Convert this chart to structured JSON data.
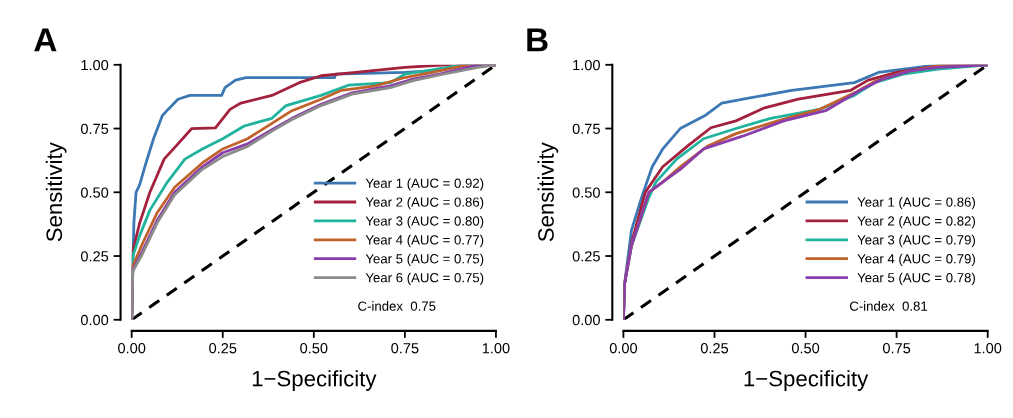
{
  "chart_data": [
    {
      "type": "line",
      "title": "A",
      "xlabel": "1−Specificity",
      "ylabel": "Sensitivity",
      "xlim": [
        0,
        1
      ],
      "ylim": [
        0,
        1
      ],
      "xticks": [
        {
          "value": 0,
          "label": "0.00"
        },
        {
          "value": 0.25,
          "label": "0.25"
        },
        {
          "value": 0.5,
          "label": "0.50"
        },
        {
          "value": 0.75,
          "label": "0.75"
        },
        {
          "value": 1,
          "label": "1.00"
        }
      ],
      "yticks": [
        {
          "value": 0,
          "label": "0.00"
        },
        {
          "value": 0.25,
          "label": "0.25"
        },
        {
          "value": 0.5,
          "label": "0.50"
        },
        {
          "value": 0.75,
          "label": "0.75"
        },
        {
          "value": 1,
          "label": "1.00"
        }
      ],
      "legend": "bottom right",
      "grid": false,
      "annotations": [
        "C-index  0.75"
      ],
      "series": [
        {
          "name": "Year 1 (AUC = 0.92)",
          "color": "#3b78b4",
          "x": [
            0,
            0.006,
            0.012,
            0.022,
            0.036,
            0.06,
            0.084,
            0.1,
            0.127,
            0.16,
            0.247,
            0.256,
            0.285,
            0.314,
            0.557,
            0.56,
            0.75,
            0.825,
            0.91,
            1
          ],
          "values": [
            0,
            0.38,
            0.5,
            0.53,
            0.6,
            0.71,
            0.8,
            0.825,
            0.865,
            0.88,
            0.88,
            0.91,
            0.94,
            0.95,
            0.95,
            0.963,
            0.97,
            0.976,
            1,
            1
          ]
        },
        {
          "name": "Year 2 (AUC = 0.86)",
          "color": "#a3213d",
          "x": [
            0,
            0.003,
            0.022,
            0.05,
            0.089,
            0.127,
            0.165,
            0.23,
            0.27,
            0.3,
            0.385,
            0.46,
            0.52,
            0.615,
            0.75,
            0.863,
            1
          ],
          "values": [
            0,
            0.27,
            0.38,
            0.5,
            0.63,
            0.69,
            0.75,
            0.753,
            0.825,
            0.85,
            0.88,
            0.93,
            0.957,
            0.97,
            0.99,
            1,
            1
          ]
        },
        {
          "name": "Year 3 (AUC = 0.80)",
          "color": "#21b39d",
          "x": [
            0,
            0.003,
            0.022,
            0.05,
            0.098,
            0.146,
            0.194,
            0.25,
            0.309,
            0.385,
            0.424,
            0.52,
            0.595,
            0.71,
            0.75,
            0.825,
            0.91,
            1
          ],
          "values": [
            0,
            0.25,
            0.33,
            0.43,
            0.54,
            0.63,
            0.67,
            0.71,
            0.76,
            0.79,
            0.84,
            0.88,
            0.92,
            0.93,
            0.963,
            0.98,
            1,
            1
          ]
        },
        {
          "name": "Year 4 (AUC = 0.77)",
          "color": "#c0632b",
          "x": [
            0,
            0.003,
            0.03,
            0.07,
            0.118,
            0.194,
            0.25,
            0.318,
            0.385,
            0.44,
            0.52,
            0.576,
            0.67,
            0.75,
            0.825,
            0.91,
            1
          ],
          "values": [
            0,
            0.21,
            0.3,
            0.42,
            0.52,
            0.615,
            0.67,
            0.71,
            0.77,
            0.82,
            0.865,
            0.9,
            0.917,
            0.95,
            0.97,
            0.996,
            1
          ]
        },
        {
          "name": "Year 5 (AUC = 0.75)",
          "color": "#8a3dab",
          "x": [
            0,
            0.003,
            0.03,
            0.07,
            0.118,
            0.194,
            0.25,
            0.318,
            0.385,
            0.44,
            0.52,
            0.605,
            0.71,
            0.77,
            0.845,
            0.94,
            1
          ],
          "values": [
            0,
            0.195,
            0.27,
            0.39,
            0.5,
            0.6,
            0.655,
            0.69,
            0.745,
            0.79,
            0.845,
            0.89,
            0.917,
            0.943,
            0.963,
            0.996,
            1
          ]
        },
        {
          "name": "Year 6 (AUC = 0.75)",
          "color": "#8c8c8c",
          "x": [
            0,
            0.003,
            0.03,
            0.07,
            0.118,
            0.194,
            0.25,
            0.318,
            0.385,
            0.44,
            0.52,
            0.605,
            0.71,
            0.77,
            0.845,
            0.95,
            1
          ],
          "values": [
            0,
            0.19,
            0.26,
            0.38,
            0.49,
            0.59,
            0.64,
            0.68,
            0.74,
            0.785,
            0.84,
            0.885,
            0.91,
            0.937,
            0.96,
            0.99,
            1
          ]
        },
        {
          "color": "#000000",
          "line_style": "dashed",
          "x": [
            0,
            1
          ],
          "values": [
            0,
            1
          ]
        }
      ]
    },
    {
      "type": "line",
      "title": "B",
      "xlabel": "1−Specificity",
      "ylabel": "Sensitivity",
      "xlim": [
        0,
        1
      ],
      "ylim": [
        0,
        1
      ],
      "xticks": [
        {
          "value": 0,
          "label": "0.00"
        },
        {
          "value": 0.25,
          "label": "0.25"
        },
        {
          "value": 0.5,
          "label": "0.50"
        },
        {
          "value": 0.75,
          "label": "0.75"
        },
        {
          "value": 1,
          "label": "1.00"
        }
      ],
      "yticks": [
        {
          "value": 0,
          "label": "0.00"
        },
        {
          "value": 0.25,
          "label": "0.25"
        },
        {
          "value": 0.5,
          "label": "0.50"
        },
        {
          "value": 0.75,
          "label": "0.75"
        },
        {
          "value": 1,
          "label": "1.00"
        }
      ],
      "legend": "bottom right",
      "grid": false,
      "annotations": [
        "C-index  0.81"
      ],
      "series": [
        {
          "name": "Year 1 (AUC = 0.86)",
          "color": "#3b78b4",
          "x": [
            0,
            0.003,
            0.022,
            0.05,
            0.079,
            0.108,
            0.156,
            0.223,
            0.27,
            0.347,
            0.462,
            0.634,
            0.7,
            0.863,
            1
          ],
          "values": [
            0,
            0.14,
            0.35,
            0.48,
            0.6,
            0.67,
            0.75,
            0.8,
            0.85,
            0.87,
            0.9,
            0.93,
            0.97,
            1,
            1
          ]
        },
        {
          "name": "Year 2 (AUC = 0.82)",
          "color": "#a3213d",
          "x": [
            0,
            0.003,
            0.022,
            0.06,
            0.108,
            0.175,
            0.24,
            0.309,
            0.385,
            0.48,
            0.624,
            0.672,
            0.75,
            0.863,
            1
          ],
          "values": [
            0,
            0.14,
            0.3,
            0.5,
            0.6,
            0.68,
            0.753,
            0.78,
            0.83,
            0.865,
            0.9,
            0.94,
            0.97,
            0.996,
            1
          ]
        },
        {
          "name": "Year 3 (AUC = 0.79)",
          "color": "#21b39d",
          "x": [
            0,
            0.003,
            0.022,
            0.07,
            0.089,
            0.146,
            0.22,
            0.309,
            0.404,
            0.538,
            0.634,
            0.69,
            0.768,
            0.863,
            1
          ],
          "values": [
            0,
            0.14,
            0.29,
            0.48,
            0.54,
            0.63,
            0.71,
            0.75,
            0.79,
            0.825,
            0.88,
            0.93,
            0.963,
            0.983,
            1
          ]
        },
        {
          "name": "Year 4 (AUC = 0.79)",
          "color": "#c0632b",
          "x": [
            0,
            0.003,
            0.022,
            0.07,
            0.108,
            0.156,
            0.23,
            0.309,
            0.424,
            0.538,
            0.634,
            0.69,
            0.768,
            0.863,
            1
          ],
          "values": [
            0,
            0.14,
            0.29,
            0.5,
            0.54,
            0.6,
            0.68,
            0.73,
            0.78,
            0.825,
            0.89,
            0.935,
            0.97,
            0.996,
            1
          ]
        },
        {
          "name": "Year 5 (AUC = 0.78)",
          "color": "#8a3dab",
          "x": [
            0,
            0.003,
            0.022,
            0.07,
            0.098,
            0.156,
            0.22,
            0.327,
            0.44,
            0.555,
            0.65,
            0.71,
            0.787,
            0.863,
            1
          ],
          "values": [
            0,
            0.14,
            0.29,
            0.5,
            0.53,
            0.59,
            0.67,
            0.72,
            0.78,
            0.82,
            0.9,
            0.943,
            0.976,
            0.99,
            1
          ]
        },
        {
          "color": "#000000",
          "line_style": "dashed",
          "x": [
            0,
            1
          ],
          "values": [
            0,
            1
          ]
        }
      ]
    }
  ]
}
